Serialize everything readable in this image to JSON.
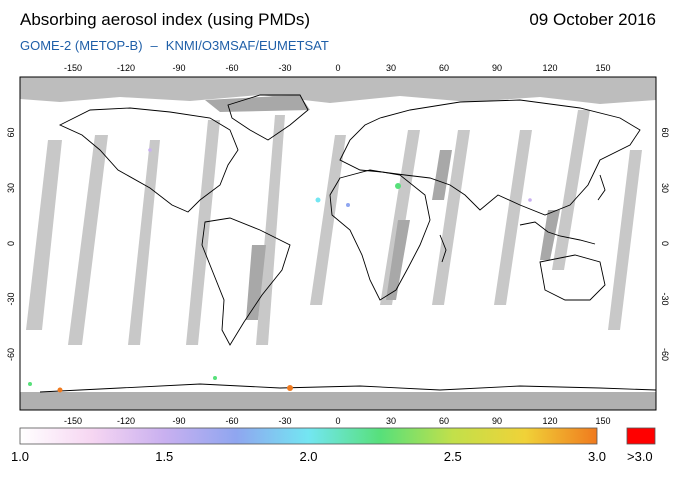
{
  "header": {
    "title": "Absorbing aerosol index (using PMDs)",
    "date": "09 October 2016",
    "subtitle_instrument": "GOME-2 (METOP-B)",
    "subtitle_separator": "–",
    "subtitle_source": "KNMI/O3MSAF/EUMETSAT"
  },
  "map": {
    "projection": "equirectangular",
    "lon_ticks": [
      "-150",
      "-120",
      "-90",
      "-60",
      "-30",
      "0",
      "30",
      "60",
      "90",
      "120",
      "150"
    ],
    "lat_ticks": [
      "60",
      "30",
      "0",
      "-30",
      "-60"
    ],
    "colors": {
      "ocean": "#ffffff",
      "no_data_swath": "#c8c8c8",
      "polar_no_data": "#bdbdbd",
      "land_no_data": "#a8a8a8",
      "coastline": "#000000"
    }
  },
  "colorbar": {
    "labels": [
      "1.0",
      "1.5",
      "2.0",
      "2.5",
      "3.0"
    ],
    "values": [
      1.0,
      1.5,
      2.0,
      2.5,
      3.0
    ],
    "overflow_label": ">3.0",
    "overflow_color": "#ff0000",
    "gradient_colors": [
      "#ffffff",
      "#f6d6f2",
      "#c9b0f0",
      "#8fa6f0",
      "#73e6f2",
      "#57e07a",
      "#c2e04a",
      "#f0d238",
      "#f07a1e"
    ]
  }
}
